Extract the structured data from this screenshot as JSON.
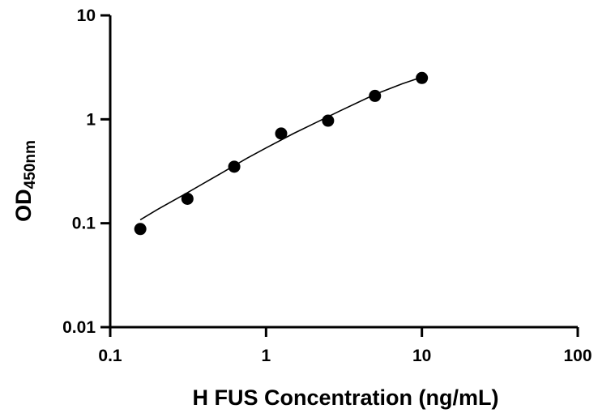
{
  "chart_data": {
    "type": "scatter",
    "xlabel": "H FUS Concentration (ng/mL)",
    "ylabel_main": "OD",
    "ylabel_sub": "450nm",
    "x_scale": "log",
    "y_scale": "log",
    "xlim": [
      0.1,
      100
    ],
    "ylim": [
      0.01,
      10
    ],
    "x_ticks": [
      0.1,
      1,
      10,
      100
    ],
    "x_tick_labels": [
      "0.1",
      "1",
      "10",
      "100"
    ],
    "y_ticks": [
      0.01,
      0.1,
      1,
      10
    ],
    "y_tick_labels": [
      "0.01",
      "0.1",
      "1",
      "10"
    ],
    "grid": false,
    "series": [
      {
        "x": [
          0.156,
          0.313,
          0.625,
          1.25,
          2.5,
          5,
          10
        ],
        "y": [
          0.088,
          0.172,
          0.35,
          0.73,
          0.97,
          1.68,
          2.5
        ]
      }
    ],
    "fit_curve": {
      "x": [
        0.156,
        0.2,
        0.3,
        0.5,
        0.75,
        1,
        1.5,
        2,
        3,
        5,
        7.5,
        10
      ],
      "y": [
        0.108,
        0.135,
        0.19,
        0.295,
        0.42,
        0.53,
        0.73,
        0.9,
        1.21,
        1.74,
        2.2,
        2.55
      ]
    }
  }
}
